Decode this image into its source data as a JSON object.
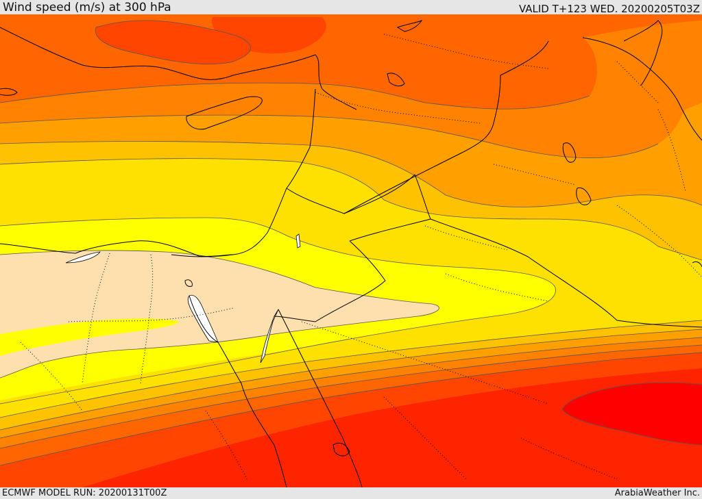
{
  "header": {
    "title": "Wind speed (m/s) at 300 hPa",
    "valid": "VALID T+123 WED. 20200205T03Z"
  },
  "footer": {
    "model_run": "ECMWF MODEL RUN: 20200131T00Z",
    "credit": "ArabiaWeather Inc."
  },
  "map": {
    "field": "wind speed at 300 hPa",
    "unit": "m/s",
    "colors": {
      "band_1": "#fde0ae",
      "band_2": "#ffff00",
      "band_3": "#ffe100",
      "band_4": "#ffc200",
      "band_5": "#ffa000",
      "band_6": "#ff8300",
      "band_7": "#ff6600",
      "band_8": "#ff4500",
      "band_9": "#ff2400",
      "band_10": "#ff0000",
      "water_gap": "#ffffff",
      "coastline": "#000000",
      "contour": "#555555"
    }
  }
}
